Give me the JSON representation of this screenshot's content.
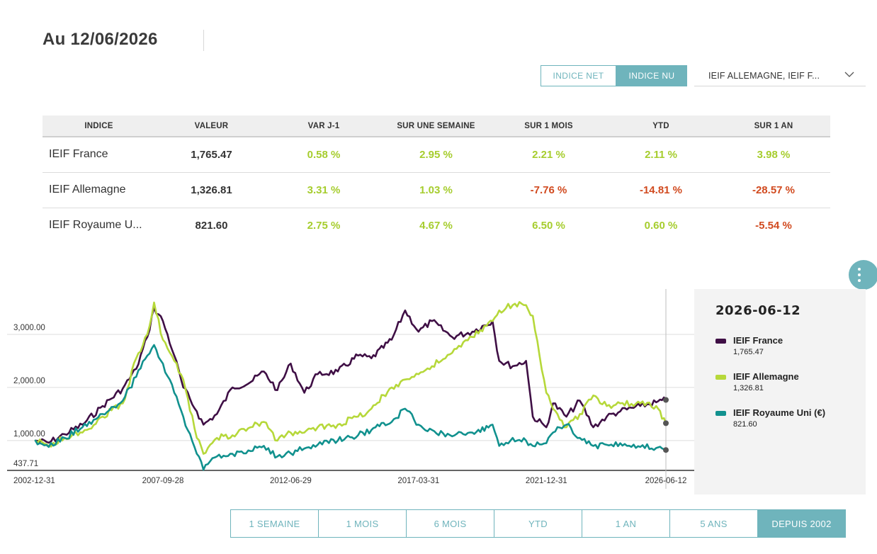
{
  "header": {
    "date_title": "Au 12/06/2026"
  },
  "toggle": {
    "net_label": "INDICE NET",
    "nu_label": "INDICE NU",
    "active": "nu"
  },
  "selector": {
    "value": "IEIF ALLEMAGNE, IEIF F..."
  },
  "table": {
    "headers": [
      "INDICE",
      "VALEUR",
      "VAR J-1",
      "SUR UNE SEMAINE",
      "SUR 1 MOIS",
      "YTD",
      "SUR 1 AN"
    ],
    "rows": [
      {
        "name": "IEIF France",
        "value": "1,765.47",
        "cells": [
          {
            "text": "0.58 %",
            "dir": "pos"
          },
          {
            "text": "2.95 %",
            "dir": "pos"
          },
          {
            "text": "2.21 %",
            "dir": "pos"
          },
          {
            "text": "2.11 %",
            "dir": "pos"
          },
          {
            "text": "3.98 %",
            "dir": "pos"
          }
        ]
      },
      {
        "name": "IEIF Allemagne",
        "value": "1,326.81",
        "cells": [
          {
            "text": "3.31 %",
            "dir": "pos"
          },
          {
            "text": "1.03 %",
            "dir": "pos"
          },
          {
            "text": "-7.76 %",
            "dir": "neg"
          },
          {
            "text": "-14.81 %",
            "dir": "neg"
          },
          {
            "text": "-28.57 %",
            "dir": "neg"
          }
        ]
      },
      {
        "name": "IEIF Royaume U...",
        "value": "821.60",
        "cells": [
          {
            "text": "2.75 %",
            "dir": "pos"
          },
          {
            "text": "4.67 %",
            "dir": "pos"
          },
          {
            "text": "6.50 %",
            "dir": "pos"
          },
          {
            "text": "0.60 %",
            "dir": "pos"
          },
          {
            "text": "-5.54 %",
            "dir": "neg"
          }
        ]
      }
    ]
  },
  "colors": {
    "france": "#3f0f45",
    "allemagne": "#b6d83a",
    "royaume_uni": "#11918e",
    "accent": "#6fb4bc",
    "positive": "#a6cd2e",
    "negative": "#d14a1f"
  },
  "legend": {
    "date": "2026-06-12",
    "items": [
      {
        "name": "IEIF France",
        "value": "1,765.47",
        "color": "#3f0f45"
      },
      {
        "name": "IEIF Allemagne",
        "value": "1,326.81",
        "color": "#b6d83a"
      },
      {
        "name": "IEIF Royaume Uni (€)",
        "value": "821.60",
        "color": "#11918e"
      }
    ]
  },
  "periods": {
    "labels": [
      "1 SEMAINE",
      "1 MOIS",
      "6 MOIS",
      "YTD",
      "1 AN",
      "5 ANS",
      "DEPUIS 2002"
    ],
    "active": "DEPUIS 2002"
  },
  "chart_data": {
    "type": "line",
    "x_tick_labels": [
      "2002-12-31",
      "2007-09-28",
      "2012-06-29",
      "2017-03-31",
      "2021-12-31",
      "2026-06-12"
    ],
    "y_tick_labels": [
      "437.71",
      "1,000.00",
      "2,000.00",
      "3,000.00"
    ],
    "y_ticks": [
      437.71,
      1000,
      2000,
      3000
    ],
    "xlim": [
      "2002-12-31",
      "2026-06-12"
    ],
    "ylim": [
      437.71,
      3600
    ],
    "grid": true,
    "legend_position": "right",
    "crosshair_date": "2026-06-12",
    "series": [
      {
        "name": "IEIF France",
        "color": "#3f0f45",
        "points": [
          [
            "2002-12-31",
            1000
          ],
          [
            "2003-06-30",
            960
          ],
          [
            "2004-01-31",
            1120
          ],
          [
            "2004-09-30",
            1300
          ],
          [
            "2005-06-30",
            1650
          ],
          [
            "2006-03-31",
            1980
          ],
          [
            "2006-09-30",
            2350
          ],
          [
            "2007-02-28",
            2950
          ],
          [
            "2007-05-31",
            3500
          ],
          [
            "2007-09-28",
            3250
          ],
          [
            "2008-02-29",
            2600
          ],
          [
            "2008-06-30",
            2000
          ],
          [
            "2008-12-31",
            1550
          ],
          [
            "2009-03-31",
            1300
          ],
          [
            "2009-09-30",
            1500
          ],
          [
            "2010-04-30",
            2000
          ],
          [
            "2010-12-31",
            2100
          ],
          [
            "2011-06-30",
            2300
          ],
          [
            "2011-12-31",
            1950
          ],
          [
            "2012-06-29",
            2450
          ],
          [
            "2012-12-31",
            1900
          ],
          [
            "2013-06-30",
            2250
          ],
          [
            "2014-03-31",
            2300
          ],
          [
            "2014-12-31",
            2600
          ],
          [
            "2015-06-30",
            2550
          ],
          [
            "2016-03-31",
            2900
          ],
          [
            "2016-09-30",
            3450
          ],
          [
            "2017-03-31",
            3050
          ],
          [
            "2017-09-30",
            3250
          ],
          [
            "2018-06-30",
            2950
          ],
          [
            "2019-03-31",
            3050
          ],
          [
            "2019-12-31",
            3250
          ],
          [
            "2020-03-31",
            2500
          ],
          [
            "2020-09-30",
            2400
          ],
          [
            "2021-03-31",
            2500
          ],
          [
            "2021-06-30",
            1450
          ],
          [
            "2021-12-31",
            1250
          ],
          [
            "2022-03-31",
            1700
          ],
          [
            "2022-09-30",
            1450
          ],
          [
            "2023-03-31",
            1750
          ],
          [
            "2023-09-30",
            1250
          ],
          [
            "2024-03-31",
            1450
          ],
          [
            "2024-09-30",
            1550
          ],
          [
            "2025-06-30",
            1650
          ],
          [
            "2026-01-31",
            1720
          ],
          [
            "2026-06-12",
            1765.47
          ]
        ]
      },
      {
        "name": "IEIF Allemagne",
        "color": "#b6d83a",
        "points": [
          [
            "2002-12-31",
            1000
          ],
          [
            "2003-06-30",
            900
          ],
          [
            "2004-01-31",
            1050
          ],
          [
            "2004-09-30",
            1150
          ],
          [
            "2005-06-30",
            1450
          ],
          [
            "2006-03-31",
            1700
          ],
          [
            "2006-09-30",
            2550
          ],
          [
            "2007-02-28",
            3000
          ],
          [
            "2007-05-31",
            3600
          ],
          [
            "2007-09-28",
            2900
          ],
          [
            "2008-02-29",
            2500
          ],
          [
            "2008-06-30",
            2150
          ],
          [
            "2008-12-31",
            1050
          ],
          [
            "2009-03-31",
            750
          ],
          [
            "2009-09-30",
            1050
          ],
          [
            "2010-04-30",
            1100
          ],
          [
            "2010-12-31",
            1250
          ],
          [
            "2011-06-30",
            1350
          ],
          [
            "2011-12-31",
            1000
          ],
          [
            "2012-06-29",
            1150
          ],
          [
            "2012-12-31",
            1150
          ],
          [
            "2013-06-30",
            1250
          ],
          [
            "2014-03-31",
            1300
          ],
          [
            "2014-12-31",
            1450
          ],
          [
            "2015-06-30",
            1600
          ],
          [
            "2016-03-31",
            2000
          ],
          [
            "2016-09-30",
            2150
          ],
          [
            "2017-03-31",
            2250
          ],
          [
            "2017-09-30",
            2400
          ],
          [
            "2018-06-30",
            2650
          ],
          [
            "2019-03-31",
            2950
          ],
          [
            "2019-12-31",
            3250
          ],
          [
            "2020-03-31",
            3450
          ],
          [
            "2020-09-30",
            3550
          ],
          [
            "2021-03-31",
            3550
          ],
          [
            "2021-06-30",
            3350
          ],
          [
            "2021-12-31",
            1900
          ],
          [
            "2022-03-31",
            1600
          ],
          [
            "2022-09-30",
            1250
          ],
          [
            "2023-03-31",
            1500
          ],
          [
            "2023-09-30",
            1850
          ],
          [
            "2024-03-31",
            1650
          ],
          [
            "2024-09-30",
            1700
          ],
          [
            "2025-06-30",
            1700
          ],
          [
            "2026-01-31",
            1650
          ],
          [
            "2026-06-12",
            1326.81
          ]
        ]
      },
      {
        "name": "IEIF Royaume Uni (€)",
        "color": "#11918e",
        "points": [
          [
            "2002-12-31",
            1000
          ],
          [
            "2003-06-30",
            880
          ],
          [
            "2004-01-31",
            1050
          ],
          [
            "2004-09-30",
            1250
          ],
          [
            "2005-06-30",
            1500
          ],
          [
            "2006-03-31",
            1750
          ],
          [
            "2006-09-30",
            2200
          ],
          [
            "2007-02-28",
            2600
          ],
          [
            "2007-05-31",
            2800
          ],
          [
            "2007-09-28",
            2450
          ],
          [
            "2008-02-29",
            1900
          ],
          [
            "2008-06-30",
            1450
          ],
          [
            "2008-12-31",
            750
          ],
          [
            "2009-03-31",
            450
          ],
          [
            "2009-09-30",
            700
          ],
          [
            "2010-04-30",
            750
          ],
          [
            "2010-12-31",
            800
          ],
          [
            "2011-06-30",
            900
          ],
          [
            "2011-12-31",
            700
          ],
          [
            "2012-06-29",
            760
          ],
          [
            "2012-12-31",
            850
          ],
          [
            "2013-06-30",
            920
          ],
          [
            "2014-03-31",
            1000
          ],
          [
            "2014-12-31",
            1100
          ],
          [
            "2015-06-30",
            1200
          ],
          [
            "2016-03-31",
            1350
          ],
          [
            "2016-09-30",
            1600
          ],
          [
            "2017-03-31",
            1300
          ],
          [
            "2017-09-30",
            1200
          ],
          [
            "2018-06-30",
            1080
          ],
          [
            "2019-03-31",
            1150
          ],
          [
            "2019-12-31",
            1300
          ],
          [
            "2020-03-31",
            900
          ],
          [
            "2020-09-30",
            1050
          ],
          [
            "2021-03-31",
            1000
          ],
          [
            "2021-06-30",
            900
          ],
          [
            "2021-12-31",
            950
          ],
          [
            "2022-03-31",
            1150
          ],
          [
            "2022-09-30",
            1300
          ],
          [
            "2023-03-31",
            1050
          ],
          [
            "2023-09-30",
            900
          ],
          [
            "2024-03-31",
            920
          ],
          [
            "2024-09-30",
            950
          ],
          [
            "2025-06-30",
            880
          ],
          [
            "2026-01-31",
            860
          ],
          [
            "2026-06-12",
            821.6
          ]
        ]
      }
    ]
  }
}
